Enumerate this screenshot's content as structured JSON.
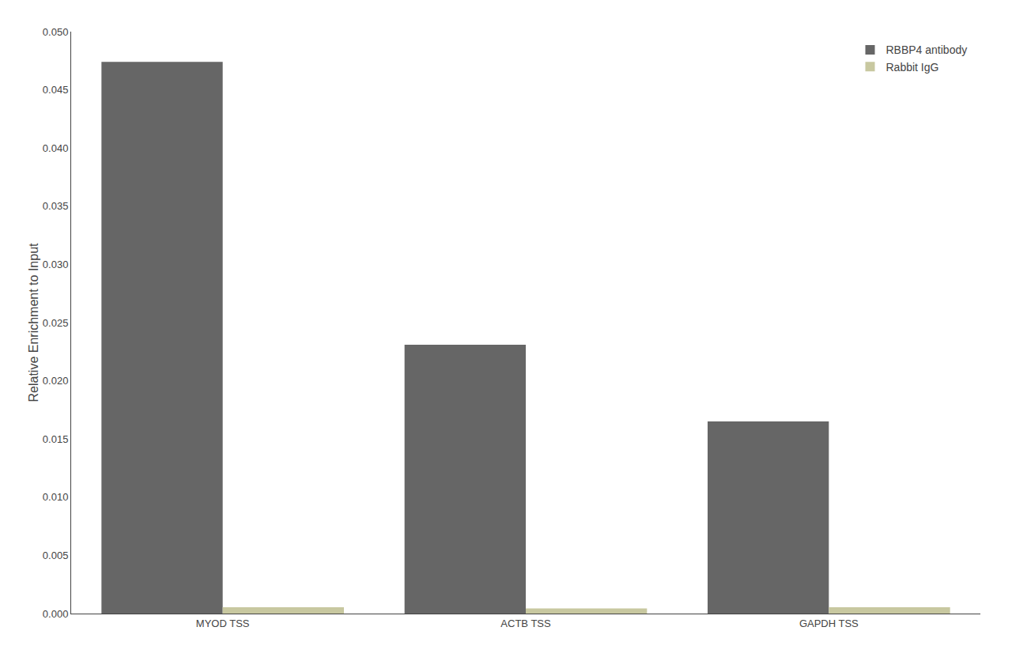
{
  "chart_data": {
    "type": "bar",
    "categories": [
      "MYOD TSS",
      "ACTB TSS",
      "GAPDH TSS"
    ],
    "series": [
      {
        "name": "RBBP4 antibody",
        "color": "#666666",
        "values": [
          0.0474,
          0.0231,
          0.0165
        ]
      },
      {
        "name": "Rabbit IgG",
        "color": "#c8c8a0",
        "values": [
          0.00055,
          0.00045,
          0.00055
        ]
      }
    ],
    "ylabel": "Relative Enrichment to Input",
    "ylim": [
      0,
      0.05
    ],
    "yticks": [
      {
        "value": 0.0,
        "label": "0.000"
      },
      {
        "value": 0.005,
        "label": "0.005"
      },
      {
        "value": 0.01,
        "label": "0.010"
      },
      {
        "value": 0.015,
        "label": "0.015"
      },
      {
        "value": 0.02,
        "label": "0.020"
      },
      {
        "value": 0.025,
        "label": "0.025"
      },
      {
        "value": 0.03,
        "label": "0.030"
      },
      {
        "value": 0.035,
        "label": "0.035"
      },
      {
        "value": 0.04,
        "label": "0.040"
      },
      {
        "value": 0.045,
        "label": "0.045"
      },
      {
        "value": 0.05,
        "label": "0.050"
      }
    ],
    "grid": false,
    "legend": "upper right"
  }
}
